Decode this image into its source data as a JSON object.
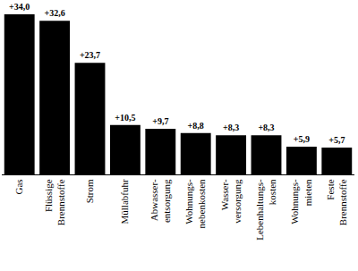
{
  "chart_data": {
    "type": "bar",
    "categories": [
      "Gas",
      "Flüssige\nBrennstoffe",
      "Strom",
      "Müllabfuhr",
      "Abwasser-\nentsorgung",
      "Wohnungs-\nnebenkosten",
      "Wasser-\nversorgung",
      "Lebenhaltungs-\nkosten",
      "Wohnungs-\nmieten",
      "Feste\nBrennstoffe"
    ],
    "values": [
      34.0,
      32.6,
      23.7,
      10.5,
      9.7,
      8.8,
      8.3,
      8.3,
      5.9,
      5.7
    ],
    "value_labels": [
      "+34,0",
      "+32,6",
      "+23,7",
      "+10,5",
      "+9,7",
      "+8,8",
      "+8,3",
      "+8,3",
      "+5,9",
      "+5,7"
    ],
    "data_labels": true,
    "color": "#000000",
    "ylim": [
      0,
      34
    ],
    "grid": false,
    "tick_labels": "x"
  }
}
